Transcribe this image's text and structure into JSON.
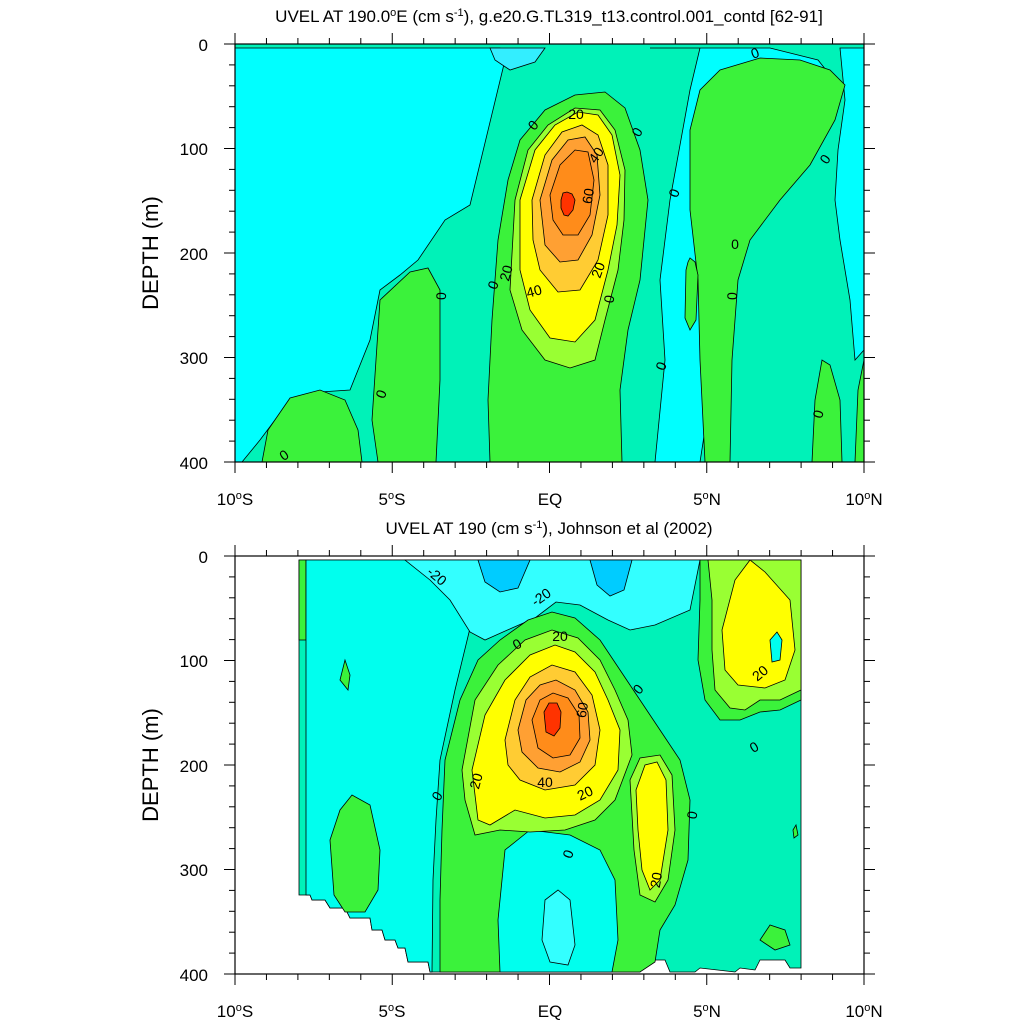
{
  "figure": {
    "panels": [
      {
        "id": "model",
        "title_parts": [
          "UVEL AT 190.0",
          "o",
          "E (cm s",
          "-1",
          "), g.e20.G.TL319_t13.control.001_contd [62-91]"
        ],
        "ylabel": "DEPTH (m)",
        "yticks": [
          "0",
          "100",
          "200",
          "300",
          "400"
        ],
        "xticks": [
          {
            "main": "10",
            "sup": "o",
            "suffix": "S"
          },
          {
            "main": "5",
            "sup": "o",
            "suffix": "S"
          },
          {
            "main": "EQ",
            "sup": "",
            "suffix": ""
          },
          {
            "main": "5",
            "sup": "o",
            "suffix": "N"
          },
          {
            "main": "10",
            "sup": "o",
            "suffix": "N"
          }
        ],
        "contour_labels": [
          "0",
          "0",
          "0",
          "0",
          "0",
          "0",
          "0",
          "0",
          "0",
          "0",
          "0",
          "0",
          "0",
          "0",
          "20",
          "20",
          "20",
          "40",
          "40",
          "60"
        ]
      },
      {
        "id": "obs",
        "title_parts": [
          "UVEL AT 190 (cm s",
          "-1",
          "), Johnson et al (2002)"
        ],
        "ylabel": "DEPTH (m)",
        "yticks": [
          "0",
          "100",
          "200",
          "300",
          "400"
        ],
        "xticks": [
          {
            "main": "10",
            "sup": "o",
            "suffix": "S"
          },
          {
            "main": "5",
            "sup": "o",
            "suffix": "S"
          },
          {
            "main": "EQ",
            "sup": "",
            "suffix": ""
          },
          {
            "main": "5",
            "sup": "o",
            "suffix": "N"
          },
          {
            "main": "10",
            "sup": "o",
            "suffix": "N"
          }
        ],
        "contour_labels": [
          "-20",
          "-20",
          "0",
          "0",
          "0",
          "0",
          "0",
          "0",
          "20",
          "20",
          "20",
          "20",
          "20",
          "40",
          "60"
        ]
      }
    ]
  },
  "chart_data": [
    {
      "type": "heatmap",
      "subtype": "filled-contour",
      "title": "UVEL AT 190.0°E (cm s-1), g.e20.G.TL319_t13.control.001_contd [62-91]",
      "xlabel": "",
      "ylabel": "DEPTH (m)",
      "x_ticks": [
        "10°S",
        "5°S",
        "EQ",
        "5°N",
        "10°N"
      ],
      "xlim": [
        -10,
        10
      ],
      "ylim": [
        400,
        0
      ],
      "y_inverted": true,
      "contour_interval": 10,
      "contour_levels_labeled": [
        0,
        20,
        40,
        60
      ],
      "core": {
        "latitude": 0.5,
        "depth": 150,
        "max_speed": 70
      },
      "fill_colors": {
        "-20": "#00ccff",
        "-10": "#00ffff",
        "0": "#00f2b8",
        "10": "#3bf23b",
        "20": "#99ff33",
        "30": "#ffff00",
        "40": "#ffcc33",
        "50": "#ffa033",
        "60": "#ff8c1a",
        "70": "#ff3300"
      }
    },
    {
      "type": "heatmap",
      "subtype": "filled-contour",
      "title": "UVEL AT 190 (cm s-1), Johnson et al (2002)",
      "xlabel": "",
      "ylabel": "DEPTH (m)",
      "x_ticks": [
        "10°S",
        "5°S",
        "EQ",
        "5°N",
        "10°N"
      ],
      "xlim": [
        -10,
        10
      ],
      "ylim": [
        400,
        0
      ],
      "y_inverted": true,
      "data_lat_range": [
        -8,
        8
      ],
      "contour_interval": 10,
      "contour_levels_labeled": [
        -20,
        0,
        20,
        40,
        60
      ],
      "core": {
        "latitude": 0.1,
        "depth": 150,
        "max_speed": 75
      },
      "fill_colors": {
        "-30": "#00ccff",
        "-20": "#33ffff",
        "-10": "#00ffee",
        "0": "#00f2b8",
        "10": "#3bf23b",
        "20": "#99ff33",
        "30": "#ffff00",
        "40": "#ffcc33",
        "50": "#ffa033",
        "60": "#ff8c1a",
        "70": "#ff3300"
      }
    }
  ]
}
